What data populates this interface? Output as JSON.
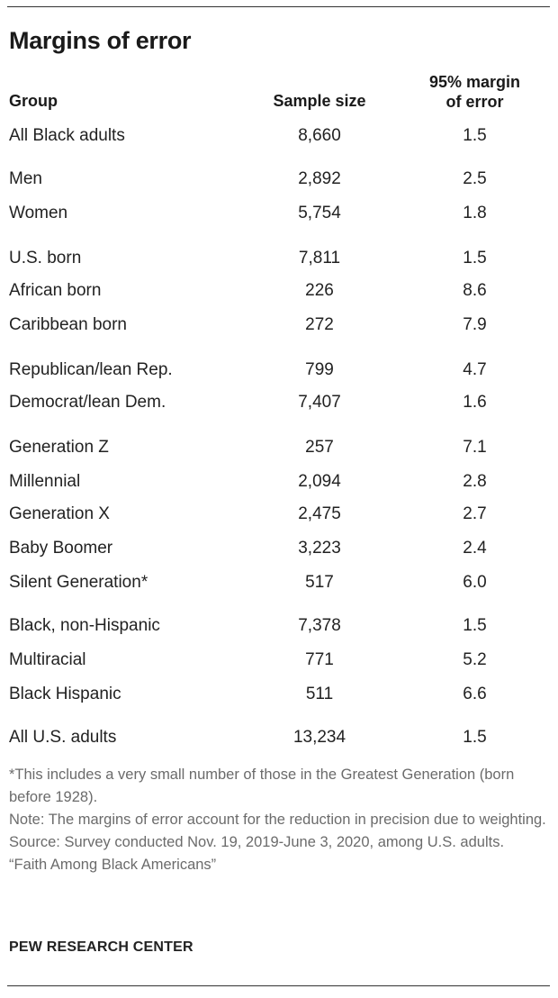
{
  "title": "Margins of error",
  "headers": {
    "group": "Group",
    "sample": "Sample size",
    "moe_line1": "95% margin",
    "moe_line2": "of error"
  },
  "rows": [
    {
      "group": "All Black adults",
      "sample": "8,660",
      "moe": "1.5"
    },
    {
      "group": "Men",
      "sample": "2,892",
      "moe": "2.5"
    },
    {
      "group": "Women",
      "sample": "5,754",
      "moe": "1.8"
    },
    {
      "group": "U.S. born",
      "sample": "7,811",
      "moe": "1.5"
    },
    {
      "group": "African born",
      "sample": "226",
      "moe": "8.6"
    },
    {
      "group": "Caribbean born",
      "sample": "272",
      "moe": "7.9"
    },
    {
      "group": "Republican/lean Rep.",
      "sample": "799",
      "moe": "4.7"
    },
    {
      "group": "Democrat/lean Dem.",
      "sample": "7,407",
      "moe": "1.6"
    },
    {
      "group": "Generation Z",
      "sample": "257",
      "moe": "7.1"
    },
    {
      "group": "Millennial",
      "sample": "2,094",
      "moe": "2.8"
    },
    {
      "group": "Generation X",
      "sample": "2,475",
      "moe": "2.7"
    },
    {
      "group": "Baby Boomer",
      "sample": "3,223",
      "moe": "2.4"
    },
    {
      "group": "Silent Generation*",
      "sample": "517",
      "moe": "6.0"
    },
    {
      "group": "Black, non-Hispanic",
      "sample": "7,378",
      "moe": "1.5"
    },
    {
      "group": "Multiracial",
      "sample": "771",
      "moe": "5.2"
    },
    {
      "group": "Black Hispanic",
      "sample": "511",
      "moe": "6.6"
    },
    {
      "group": "All U.S. adults",
      "sample": "13,234",
      "moe": "1.5"
    }
  ],
  "notes": {
    "footnote": "*This includes a very small number of those in the Greatest Generation (born before 1928).",
    "note": "Note: The margins of error account for the reduction in precision due to weighting.",
    "source": "Source: Survey conducted Nov. 19, 2019-June 3, 2020, among U.S. adults.",
    "report": "“Faith Among Black Americans”"
  },
  "brand": "PEW RESEARCH CENTER"
}
